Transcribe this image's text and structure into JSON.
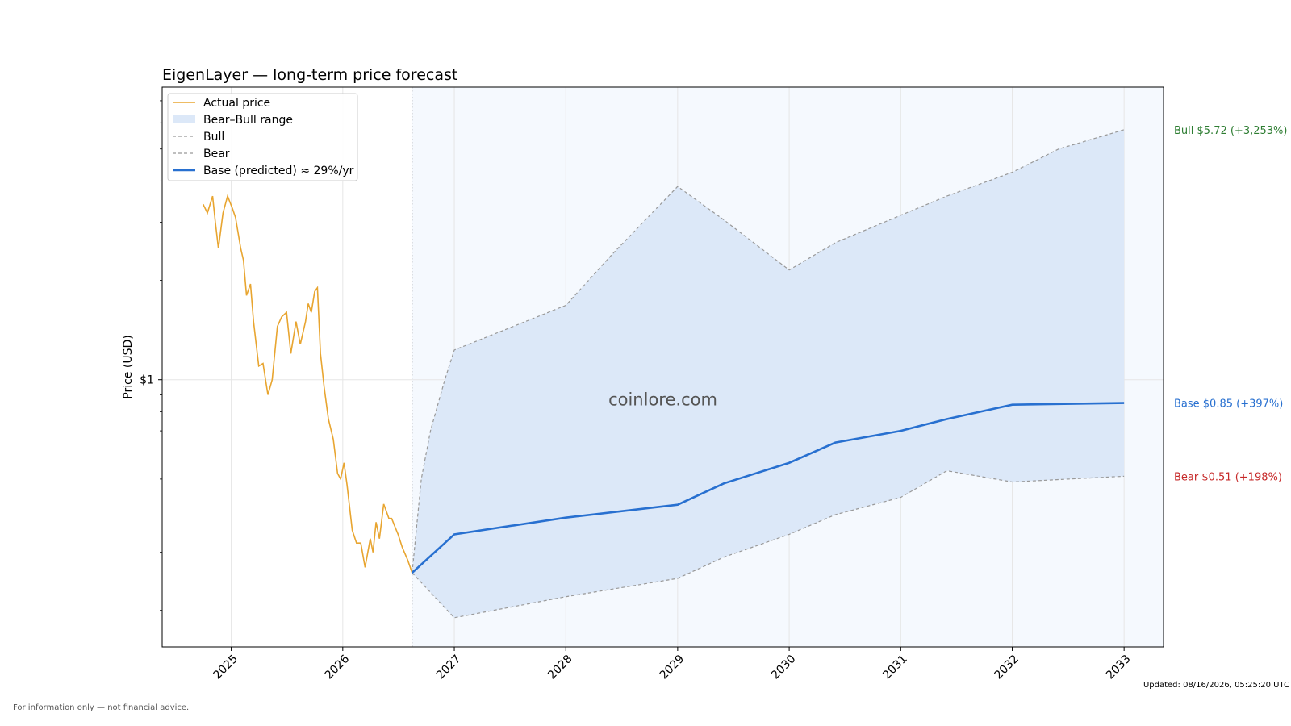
{
  "chart_data": {
    "type": "line",
    "title": "EigenLayer — long-term price forecast",
    "ylabel": "Price (USD)",
    "y_scale": "log",
    "y_tick_labels": [
      {
        "value": 1,
        "label": "$1"
      }
    ],
    "x_tick_labels": [
      "2025",
      "2026",
      "2027",
      "2028",
      "2029",
      "2030",
      "2031",
      "2032",
      "2033"
    ],
    "xlim": [
      "2024-05-20",
      "2033-05-10"
    ],
    "ylim": [
      0.155,
      7.7
    ],
    "grid": true,
    "forecast_start": "2026-08-16",
    "legend": {
      "placement": "top-left",
      "entries": [
        "Actual price",
        "Bear–Bull range",
        "Bull",
        "Bear",
        "Base (predicted) ≈ 29%/yr"
      ]
    },
    "watermark": "coinlore.com",
    "colors": {
      "actual": "#e8a530",
      "range_fill": "#dce8f8",
      "forecast_bg": "#f5f9fe",
      "bull_bear_line": "#999999",
      "base": "#2870d0",
      "bull_label": "#2e7d32",
      "base_label": "#2870d0",
      "bear_label": "#c62828"
    },
    "series": [
      {
        "name": "Actual price",
        "x": [
          "2024-10-01",
          "2024-10-15",
          "2024-11-01",
          "2024-11-10",
          "2024-11-20",
          "2024-12-05",
          "2024-12-20",
          "2025-01-05",
          "2025-01-15",
          "2025-02-01",
          "2025-02-10",
          "2025-02-20",
          "2025-03-05",
          "2025-03-15",
          "2025-04-01",
          "2025-04-15",
          "2025-05-01",
          "2025-05-15",
          "2025-06-01",
          "2025-06-15",
          "2025-07-01",
          "2025-07-15",
          "2025-08-01",
          "2025-08-15",
          "2025-09-01",
          "2025-09-10",
          "2025-09-20",
          "2025-10-01",
          "2025-10-10",
          "2025-10-20",
          "2025-11-01",
          "2025-11-15",
          "2025-12-01",
          "2025-12-15",
          "2025-12-25",
          "2026-01-05",
          "2026-01-15",
          "2026-02-01",
          "2026-02-15",
          "2026-03-01",
          "2026-03-15",
          "2026-04-01",
          "2026-04-10",
          "2026-04-20",
          "2026-05-01",
          "2026-05-15",
          "2026-06-01",
          "2026-06-10",
          "2026-06-20",
          "2026-07-01",
          "2026-07-15",
          "2026-08-01",
          "2026-08-16"
        ],
        "y": [
          3.4,
          3.2,
          3.6,
          3.0,
          2.5,
          3.2,
          3.6,
          3.3,
          3.1,
          2.5,
          2.3,
          1.8,
          1.95,
          1.5,
          1.1,
          1.12,
          0.9,
          1.0,
          1.45,
          1.55,
          1.6,
          1.2,
          1.5,
          1.28,
          1.5,
          1.7,
          1.6,
          1.85,
          1.9,
          1.2,
          0.95,
          0.76,
          0.66,
          0.52,
          0.5,
          0.56,
          0.48,
          0.35,
          0.32,
          0.32,
          0.27,
          0.33,
          0.3,
          0.37,
          0.33,
          0.42,
          0.38,
          0.38,
          0.36,
          0.34,
          0.31,
          0.285,
          0.26
        ]
      },
      {
        "name": "Bull",
        "x": [
          "2026-08-16",
          "2026-09-15",
          "2026-10-15",
          "2026-12-01",
          "2027-01-01",
          "2028-01-01",
          "2028-06-01",
          "2029-01-01",
          "2029-06-01",
          "2030-01-01",
          "2030-06-01",
          "2031-01-01",
          "2031-06-01",
          "2032-01-01",
          "2032-06-01",
          "2033-01-01"
        ],
        "y": [
          0.26,
          0.5,
          0.7,
          1.0,
          1.23,
          1.68,
          2.4,
          3.85,
          3.05,
          2.15,
          2.6,
          3.15,
          3.6,
          4.25,
          5.0,
          5.72
        ]
      },
      {
        "name": "Bear",
        "x": [
          "2026-08-16",
          "2027-01-01",
          "2028-01-01",
          "2029-01-01",
          "2029-06-01",
          "2030-01-01",
          "2030-06-01",
          "2031-01-01",
          "2031-06-01",
          "2032-01-01",
          "2033-01-01"
        ],
        "y": [
          0.26,
          0.19,
          0.22,
          0.25,
          0.29,
          0.34,
          0.39,
          0.44,
          0.53,
          0.49,
          0.51
        ]
      },
      {
        "name": "Base (predicted) ≈ 29%/yr",
        "x": [
          "2026-08-16",
          "2027-01-01",
          "2028-01-01",
          "2029-01-01",
          "2029-06-01",
          "2030-01-01",
          "2030-06-01",
          "2031-01-01",
          "2031-06-01",
          "2032-01-01",
          "2033-01-01"
        ],
        "y": [
          0.26,
          0.34,
          0.382,
          0.418,
          0.485,
          0.56,
          0.645,
          0.7,
          0.76,
          0.84,
          0.85
        ]
      }
    ],
    "end_labels": [
      {
        "series": "Bull",
        "text": "Bull $5.72 (+3,253%)",
        "value": 5.72
      },
      {
        "series": "Base",
        "text": "Base $0.85 (+397%)",
        "value": 0.85
      },
      {
        "series": "Bear",
        "text": "Bear $0.51 (+198%)",
        "value": 0.51
      }
    ]
  },
  "footer": {
    "updated": "Updated: 08/16/2026, 05:25:20 UTC",
    "disclaimer": "For information only — not financial advice."
  }
}
